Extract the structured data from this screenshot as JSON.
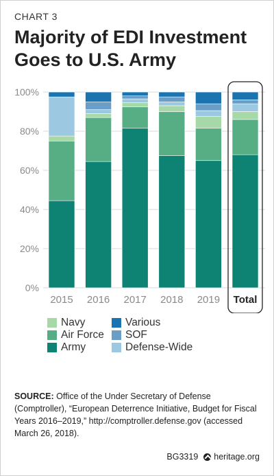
{
  "header": {
    "eyebrow": "CHART 3",
    "title": "Majority of EDI Investment Goes to U.S. Army"
  },
  "colors": {
    "Navy": "#a6d8a8",
    "Air Force": "#57ad84",
    "Army": "#0f8373",
    "Various": "#1a74b0",
    "SOF": "#6b9ec6",
    "Defense-Wide": "#9cc9e1"
  },
  "legend": [
    {
      "name": "Navy",
      "label": "Navy"
    },
    {
      "name": "Air Force",
      "label": "Air Force"
    },
    {
      "name": "Army",
      "label": "Army"
    },
    {
      "name": "Various",
      "label": "Various"
    },
    {
      "name": "SOF",
      "label": "SOF"
    },
    {
      "name": "Defense-Wide",
      "label": "Defense-Wide"
    }
  ],
  "chart_data": {
    "type": "bar",
    "stacked": true,
    "categories": [
      "2015",
      "2016",
      "2017",
      "2018",
      "2019",
      "Total"
    ],
    "highlight_category": "Total",
    "yticks": [
      "0%",
      "20%",
      "40%",
      "60%",
      "80%",
      "100%"
    ],
    "ylim": [
      0,
      100
    ],
    "grid": true,
    "legend_position": "bottom",
    "series": [
      {
        "name": "Army",
        "values": [
          44.5,
          64.5,
          81.5,
          67.5,
          65,
          68
        ]
      },
      {
        "name": "Air Force",
        "values": [
          30.5,
          22.5,
          11,
          22.5,
          16.5,
          18
        ]
      },
      {
        "name": "Navy",
        "values": [
          2.5,
          2,
          2,
          3,
          6,
          4
        ]
      },
      {
        "name": "Defense-Wide",
        "values": [
          20,
          2,
          2,
          2,
          3,
          4
        ]
      },
      {
        "name": "SOF",
        "values": [
          0,
          4,
          1.5,
          2.5,
          3.5,
          2
        ]
      },
      {
        "name": "Various",
        "values": [
          2.5,
          5,
          2,
          2.5,
          6,
          4
        ]
      }
    ]
  },
  "source": {
    "label": "SOURCE:",
    "text": "Office of the Under Secretary of Defense (Comptroller), “European Deterrence Initiative, Budget for Fiscal Years 2016–2019,” http://comptroller.defense.gov (accessed March 26, 2018)."
  },
  "footer": {
    "code": "BG3319",
    "site": "heritage.org"
  }
}
